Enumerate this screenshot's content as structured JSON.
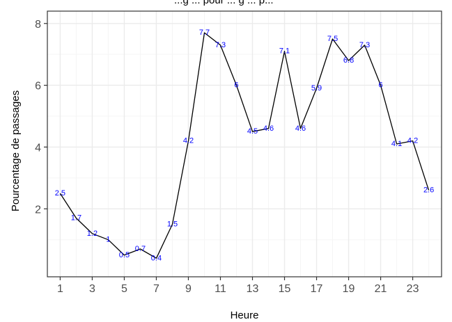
{
  "chart_data": {
    "type": "line",
    "title": "...g ... pour ... g ... p...",
    "xlabel": "Heure",
    "ylabel": "Pourcentage de passages",
    "x": [
      1,
      2,
      3,
      4,
      5,
      6,
      7,
      8,
      9,
      10,
      11,
      12,
      13,
      14,
      15,
      16,
      17,
      18,
      19,
      20,
      21,
      22,
      23,
      24
    ],
    "y": [
      2.5,
      1.7,
      1.2,
      1,
      0.5,
      0.7,
      0.4,
      1.5,
      4.2,
      7.7,
      7.3,
      6,
      4.5,
      4.6,
      7.1,
      4.6,
      5.9,
      7.5,
      6.8,
      7.3,
      6,
      4.1,
      4.2,
      2.6
    ],
    "data_labels": [
      "2.5",
      "1.7",
      "1.2",
      "1",
      "0.5",
      "0.7",
      "0.4",
      "1.5",
      "4.2",
      "7.7",
      "7.3",
      "6",
      "4.5",
      "4.6",
      "7.1",
      "4.6",
      "5.9",
      "7.5",
      "6.8",
      "7.3",
      "6",
      "4.1",
      "4.2",
      "2.6"
    ],
    "x_ticks": [
      1,
      3,
      5,
      7,
      9,
      11,
      13,
      15,
      17,
      19,
      21,
      23
    ],
    "y_ticks": [
      2,
      4,
      6,
      8
    ],
    "xlim": [
      0.2,
      24.8
    ],
    "ylim": [
      -0.2,
      8.4
    ],
    "grid": true,
    "background": "#ffffff",
    "grid_major_color": "#ebebeb",
    "grid_minor_color": "#f5f5f5",
    "line_color": "#000000",
    "label_color": "#0000ff",
    "panel_border_color": "#333333"
  }
}
